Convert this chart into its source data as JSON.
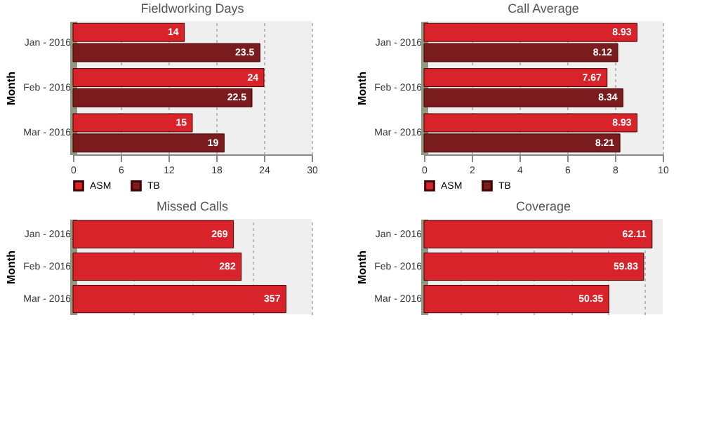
{
  "chart_data": [
    {
      "type": "bar",
      "orientation": "horizontal",
      "title": "Fieldworking Days",
      "ylabel": "Month",
      "categories": [
        "Jan - 2016",
        "Feb - 2016",
        "Mar - 2016"
      ],
      "series": [
        {
          "name": "ASM",
          "color": "#d9232a",
          "values": [
            14,
            24,
            15
          ]
        },
        {
          "name": "TB",
          "color": "#7a1c1e",
          "values": [
            23.5,
            22.5,
            19
          ]
        }
      ],
      "xlim": [
        0,
        30
      ],
      "xticks": [
        0,
        6,
        12,
        18,
        24,
        30
      ],
      "grid": "x",
      "legend": "bottom",
      "data_labels": true
    },
    {
      "type": "bar",
      "orientation": "horizontal",
      "title": "Call Average",
      "ylabel": "Month",
      "categories": [
        "Jan - 2016",
        "Feb - 2016",
        "Mar - 2016"
      ],
      "series": [
        {
          "name": "ASM",
          "color": "#d9232a",
          "values": [
            8.93,
            7.67,
            8.93
          ]
        },
        {
          "name": "TB",
          "color": "#7a1c1e",
          "values": [
            8.12,
            8.34,
            8.21
          ]
        }
      ],
      "xlim": [
        0,
        10
      ],
      "xticks": [
        0,
        2,
        4,
        6,
        8,
        10
      ],
      "grid": "x",
      "legend": "bottom",
      "data_labels": true
    },
    {
      "type": "bar",
      "orientation": "horizontal",
      "title": "Missed Calls",
      "ylabel": "Month",
      "categories": [
        "Jan - 2016",
        "Feb - 2016",
        "Mar - 2016"
      ],
      "series": [
        {
          "color": "#d9232a",
          "values": [
            269,
            282,
            357
          ]
        }
      ],
      "grid": "x",
      "tick_labels": "y",
      "data_labels": true
    },
    {
      "type": "bar",
      "orientation": "horizontal",
      "title": "Coverage",
      "ylabel": "Month",
      "categories": [
        "Jan - 2016",
        "Feb - 2016",
        "Mar - 2016"
      ],
      "series": [
        {
          "color": "#d9232a",
          "values": [
            62.11,
            59.83,
            50.35
          ]
        }
      ],
      "grid": "x",
      "tick_labels": "y",
      "data_labels": true
    }
  ]
}
